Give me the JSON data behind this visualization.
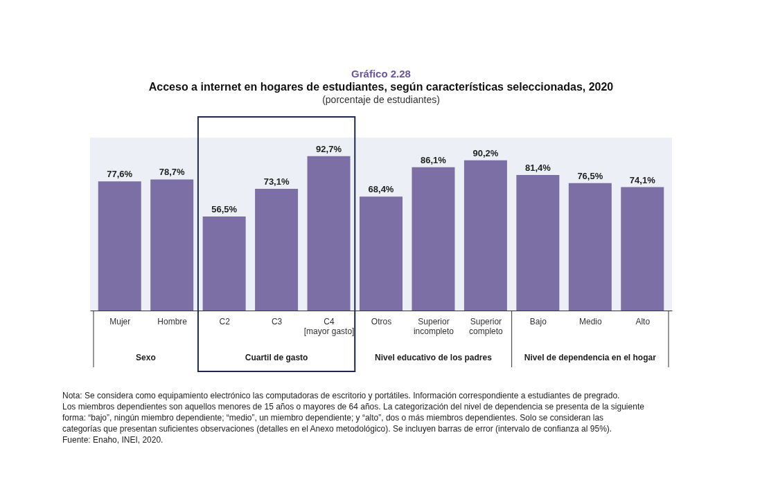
{
  "chart_data": {
    "type": "bar",
    "title": "Acceso a internet en hogares de estudiantes, según características seleccionadas, 2020",
    "subtitle": "(porcentaje de estudiantes)",
    "categories": [
      "Mujer",
      "Hombre",
      "C2",
      "C3",
      "C4 [mayor gasto]",
      "Otros",
      "Superior incompleto",
      "Superior completo",
      "Bajo",
      "Medio",
      "Alto"
    ],
    "values": [
      77.6,
      78.7,
      56.5,
      73.1,
      92.7,
      68.4,
      86.1,
      90.2,
      81.4,
      76.5,
      74.1
    ],
    "value_labels": [
      "77,6%",
      "78,7%",
      "56,5%",
      "73,1%",
      "92,7%",
      "68,4%",
      "86,1%",
      "90,2%",
      "81,4%",
      "76,5%",
      "74,1%"
    ],
    "color": "#7b6fa6",
    "annotations": [
      "Gráfico 2.28",
      "Sexo",
      "Cuartil de gasto",
      "Nivel educativo de los padres",
      "Nivel de dependencia en el hogar",
      "Nota: Se considera como equipamiento electrónico las computadoras de escritorio y portátiles. Información correspondiente a estudiantes de pregrado. Los miembros dependientes son aquellos menores de 15 años o mayores de 64 años. La categorización del nivel de dependencia se presenta de la siguiente forma: “bajo”, ningún miembro dependiente; “medio”, un miembro dependiente; y “alto”, dos o más miembros dependientes. Solo se consideran las categorías que presentan suficientes observaciones (detalles en el Anexo metodológico). Se incluyen barras de error (intervalo de confianza al 95%).",
      "Fuente: Enaho, INEI, 2020."
    ]
  }
}
